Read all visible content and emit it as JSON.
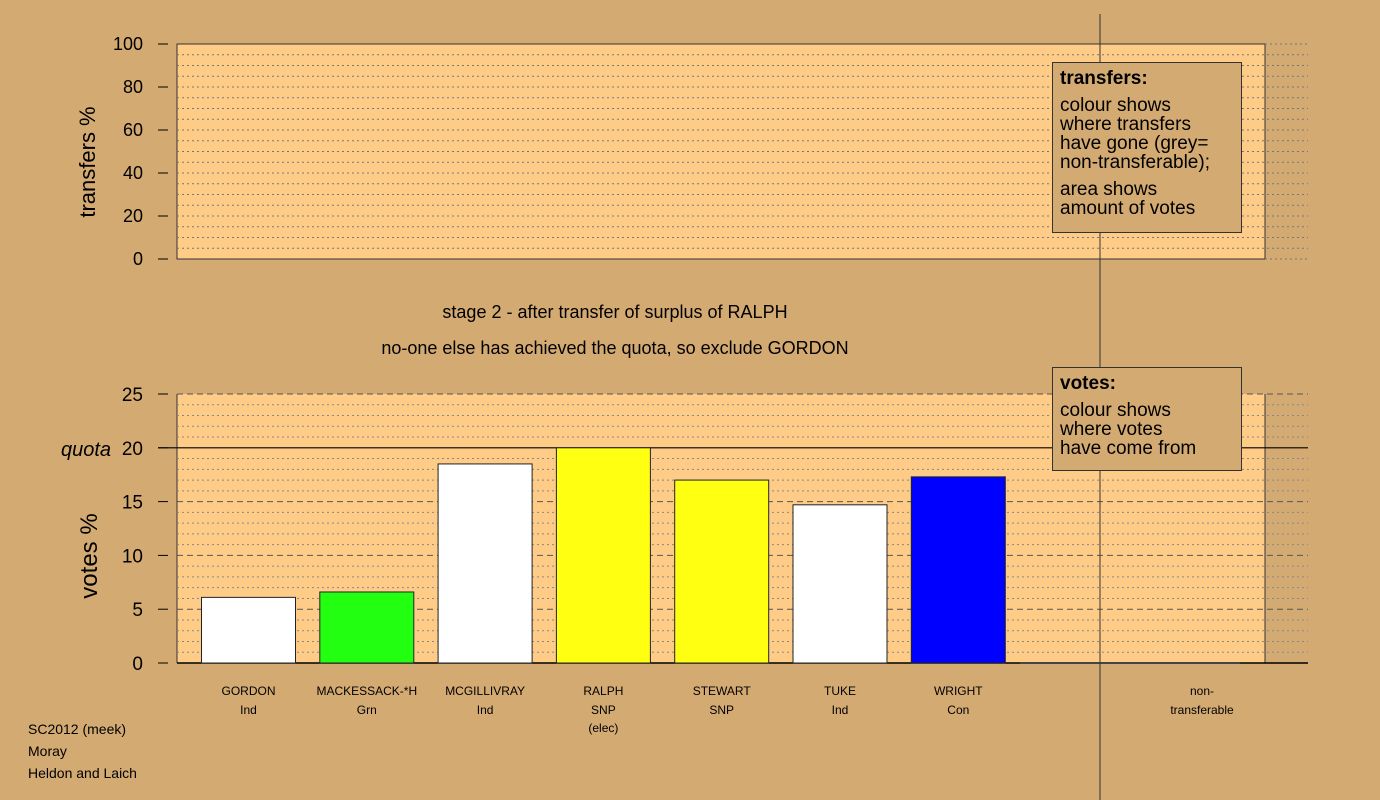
{
  "stage_text": {
    "line1": "stage 2 - after transfer of surplus of RALPH",
    "line2": "no-one else has achieved the quota, so exclude GORDON"
  },
  "transfers_chart": {
    "ylabel": "transfers %",
    "ylim": [
      0,
      100
    ],
    "ticks": [
      "0",
      "20",
      "40",
      "60",
      "80",
      "100"
    ]
  },
  "votes_chart": {
    "ylabel": "votes %",
    "quota_label": "quota",
    "ticks": [
      "0",
      "5",
      "10",
      "15",
      "20",
      "25"
    ]
  },
  "legend_transfers": {
    "title": "transfers:",
    "lines": [
      "colour shows",
      "where transfers",
      "have gone (grey=",
      "non-transferable);"
    ],
    "lines2": [
      "area shows",
      "amount of votes"
    ]
  },
  "legend_votes": {
    "title": "votes:",
    "lines": [
      "colour shows",
      "where votes",
      "have come from"
    ]
  },
  "footer": {
    "line1": "SC2012 (meek)",
    "line2": "Moray",
    "line3": "Heldon and Laich"
  },
  "chart_data": {
    "type": "bar",
    "title": "",
    "ylabel": "votes %",
    "ylim": [
      0,
      25
    ],
    "quota": 20,
    "categories": [
      "GORDON",
      "MACKESSACK-*H",
      "MCGILLIVRAY",
      "RALPH",
      "STEWART",
      "TUKE",
      "WRIGHT",
      "non-"
    ],
    "parties": [
      "Ind",
      "Grn",
      "Ind",
      "SNP",
      "SNP",
      "Ind",
      "Con",
      "transferable"
    ],
    "notes": [
      "",
      "",
      "",
      "(elec)",
      "",
      "",
      "",
      ""
    ],
    "values": [
      6.1,
      6.6,
      18.5,
      20.0,
      17.0,
      14.7,
      17.3,
      0
    ],
    "colors": [
      "#ffffff",
      "#22ff11",
      "#ffffff",
      "#ffff11",
      "#ffff11",
      "#ffffff",
      "#0000ff",
      "#999999"
    ]
  }
}
